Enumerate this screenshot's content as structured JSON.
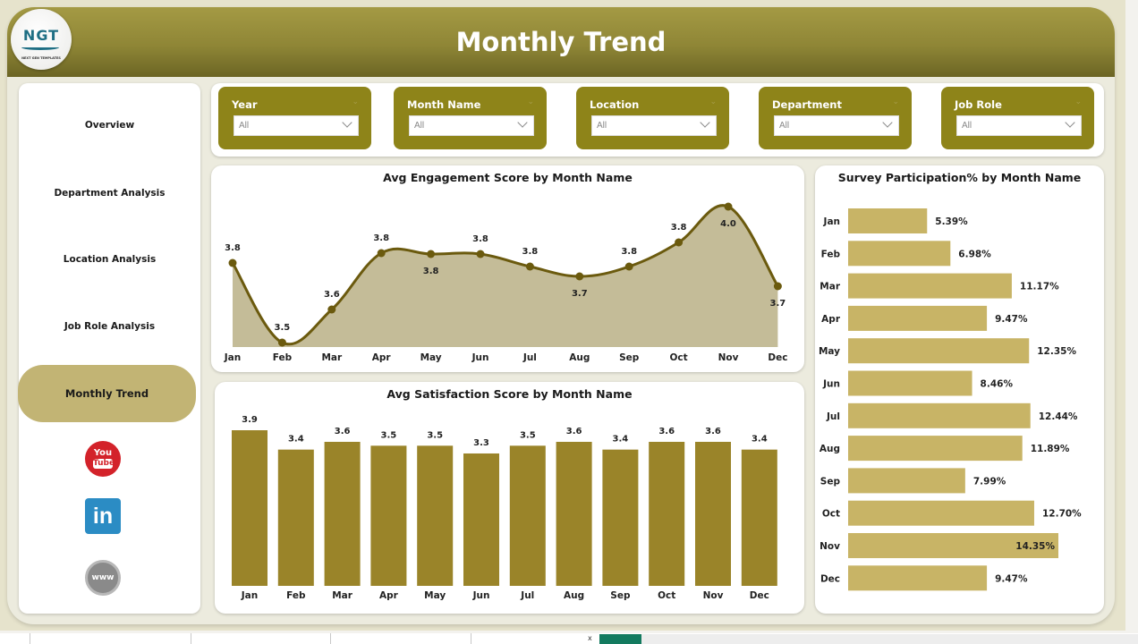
{
  "header": {
    "title": "Monthly Trend",
    "logo_text": "NGT",
    "logo_subtext": "NEXT GEN TEMPLATES"
  },
  "sidebar": {
    "items": [
      {
        "label": "Overview",
        "active": false
      },
      {
        "label": "Department Analysis",
        "active": false
      },
      {
        "label": "Location Analysis",
        "active": false
      },
      {
        "label": "Job Role Analysis",
        "active": false
      },
      {
        "label": "Monthly Trend",
        "active": true
      }
    ],
    "social": [
      {
        "icon": "youtube-icon",
        "line1": "You",
        "line2": "Tube"
      },
      {
        "icon": "linkedin-icon",
        "text": "in"
      },
      {
        "icon": "website-icon",
        "text": "www"
      }
    ]
  },
  "filters": [
    {
      "label": "Year",
      "value": "All"
    },
    {
      "label": "Month Name",
      "value": "All"
    },
    {
      "label": "Location",
      "value": "All"
    },
    {
      "label": "Department",
      "value": "All"
    },
    {
      "label": "Job Role",
      "value": "All"
    }
  ],
  "colors": {
    "header": "#8f8636",
    "slicer": "#8e8419",
    "line": "#6b5a0e",
    "area": "#c4bc98",
    "bar": "#9a8429",
    "hbar": "#c8b466",
    "active_nav": "#c2b474"
  },
  "footer": {
    "tab_close": "x"
  },
  "chart_data": [
    {
      "type": "area",
      "title": "Avg Engagement Score by Month Name",
      "categories": [
        "Jan",
        "Feb",
        "Mar",
        "Apr",
        "May",
        "Jun",
        "Jul",
        "Aug",
        "Sep",
        "Oct",
        "Nov",
        "Dec"
      ],
      "values": [
        3.8,
        3.5,
        3.6,
        3.8,
        3.8,
        3.8,
        3.8,
        3.7,
        3.8,
        3.8,
        4.0,
        3.7
      ],
      "labels": [
        "3.8",
        "3.5",
        "3.6",
        "3.8",
        "3.8",
        "3.8",
        "3.8",
        "3.7",
        "3.8",
        "3.8",
        "4.0",
        "3.7"
      ],
      "xlabel": "",
      "ylabel": "",
      "grid": false
    },
    {
      "type": "bar",
      "title": "Avg Satisfaction Score by Month Name",
      "categories": [
        "Jan",
        "Feb",
        "Mar",
        "Apr",
        "May",
        "Jun",
        "Jul",
        "Aug",
        "Sep",
        "Oct",
        "Nov",
        "Dec"
      ],
      "values": [
        3.9,
        3.4,
        3.6,
        3.5,
        3.5,
        3.3,
        3.5,
        3.6,
        3.4,
        3.6,
        3.6,
        3.4
      ],
      "labels": [
        "3.9",
        "3.4",
        "3.6",
        "3.5",
        "3.5",
        "3.3",
        "3.5",
        "3.6",
        "3.4",
        "3.6",
        "3.6",
        "3.4"
      ],
      "xlabel": "",
      "ylabel": "",
      "grid": false
    },
    {
      "type": "bar",
      "orientation": "horizontal",
      "title": "Survey Participation% by Month Name",
      "categories": [
        "Jan",
        "Feb",
        "Mar",
        "Apr",
        "May",
        "Jun",
        "Jul",
        "Aug",
        "Sep",
        "Oct",
        "Nov",
        "Dec"
      ],
      "values": [
        5.39,
        6.98,
        11.17,
        9.47,
        12.35,
        8.46,
        12.44,
        11.89,
        7.99,
        12.7,
        14.35,
        9.47
      ],
      "labels": [
        "5.39%",
        "6.98%",
        "11.17%",
        "9.47%",
        "12.35%",
        "8.46%",
        "12.44%",
        "11.89%",
        "7.99%",
        "12.70%",
        "14.35%",
        "9.47%"
      ],
      "xlabel": "",
      "ylabel": "",
      "grid": false
    }
  ]
}
